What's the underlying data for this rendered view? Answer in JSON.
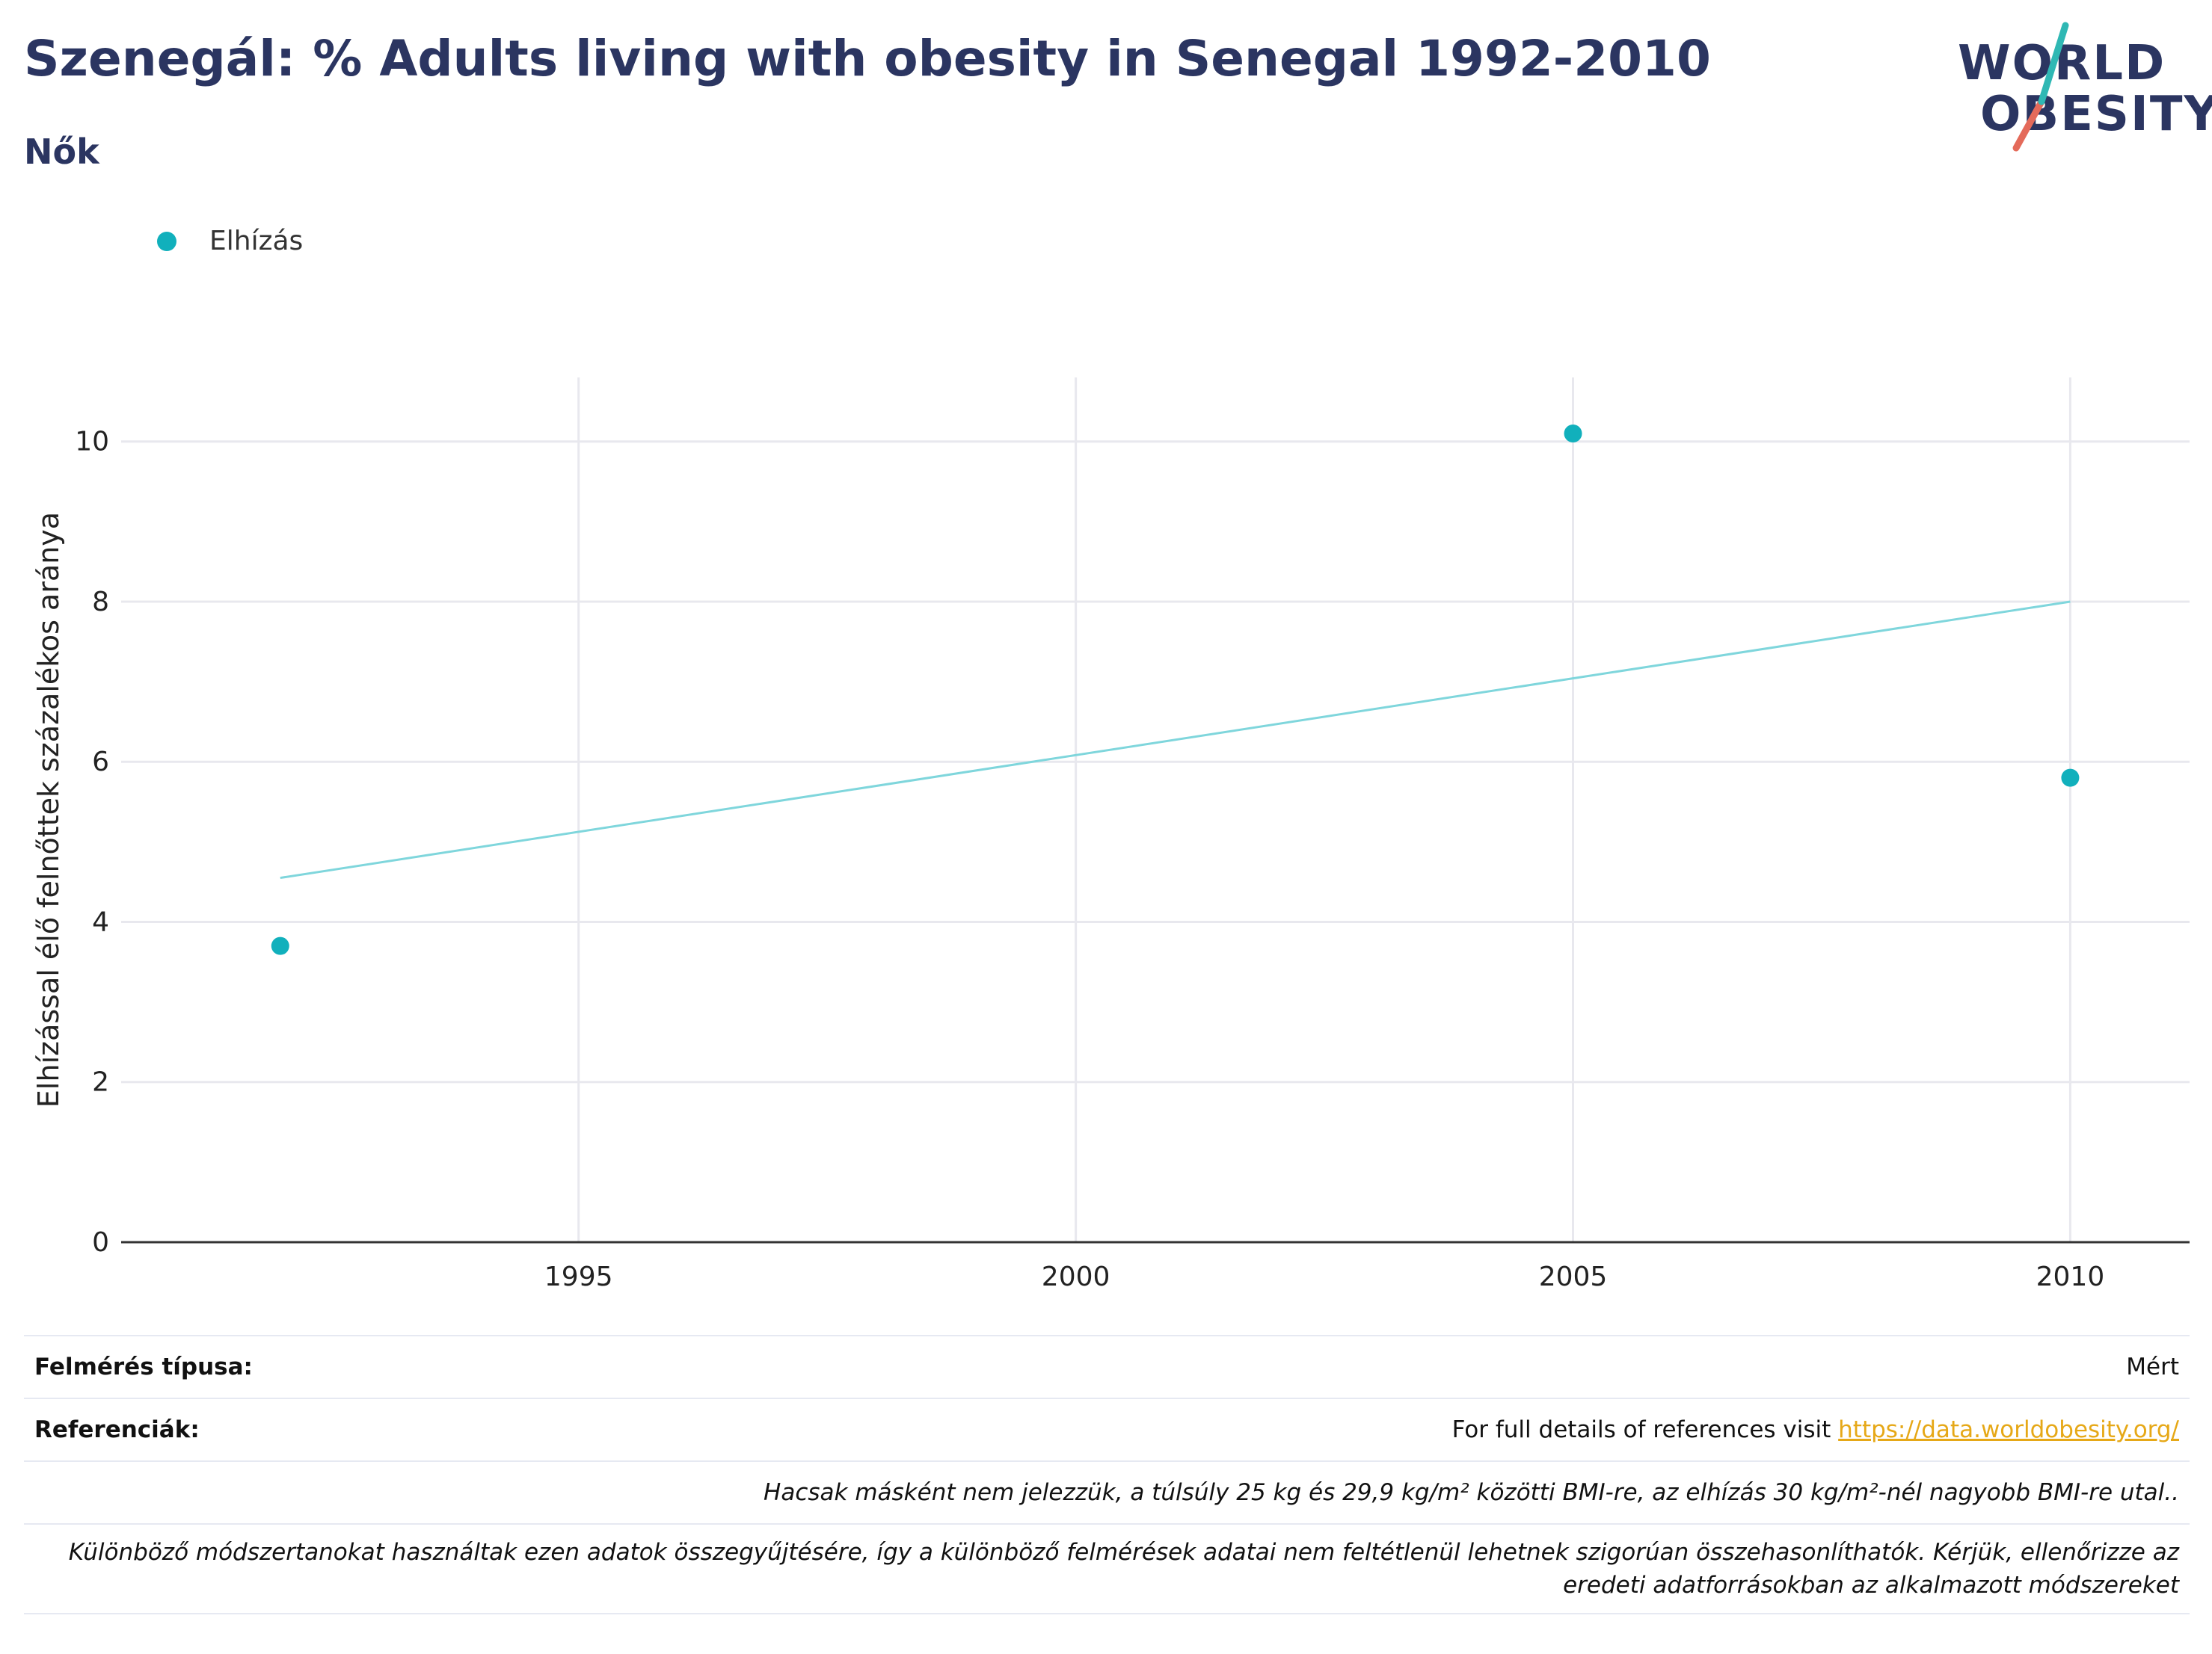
{
  "header": {
    "title": "Szenegál: % Adults living with obesity in Senegal 1992-2010",
    "subtitle": "Nők",
    "logo_line1": "WORLD",
    "logo_line2": "OBESITY"
  },
  "legend": {
    "label": "Elhízás"
  },
  "colors": {
    "accent": "#11b0bc",
    "trend": "#7fd6dc",
    "title": "#2b3561",
    "link": "#e6a817",
    "logo_teal": "#2fb8b4",
    "logo_red": "#e46a5a"
  },
  "chart_data": {
    "type": "scatter",
    "title": "Szenegál: % Adults living with obesity in Senegal 1992-2010",
    "ylabel": "Elhízással élő felnőttek százalékos aránya",
    "xlabel": "",
    "xlim": [
      1990.4,
      2011.2
    ],
    "ylim": [
      0,
      10.8
    ],
    "x_ticks": [
      1995,
      2000,
      2005,
      2010
    ],
    "y_ticks": [
      0,
      2,
      4,
      6,
      8,
      10
    ],
    "grid": true,
    "legend_position": "top-left",
    "series": [
      {
        "name": "Elhízás",
        "x": [
          1992,
          2005,
          2010
        ],
        "y": [
          3.7,
          10.1,
          5.8
        ]
      }
    ],
    "trendline": {
      "x": [
        1992,
        2010
      ],
      "y": [
        4.55,
        8.0
      ]
    }
  },
  "table": {
    "survey_type_label": "Felmérés típusa:",
    "survey_type_value": "Mért",
    "references_label": "Referenciák:",
    "references_text": "For full details of references visit ",
    "references_link": "https://data.worldobesity.org/",
    "note1": "Hacsak másként nem jelezzük, a túlsúly 25 kg és 29,9 kg/m² közötti BMI-re, az elhízás 30 kg/m²-nél nagyobb BMI-re utal..",
    "note2": "Különböző módszertanokat használtak ezen adatok összegyűjtésére, így a különböző felmérések adatai nem feltétlenül lehetnek szigorúan összehasonlíthatók. Kérjük, ellenőrizze az eredeti adatforrásokban az alkalmazott módszereket"
  }
}
